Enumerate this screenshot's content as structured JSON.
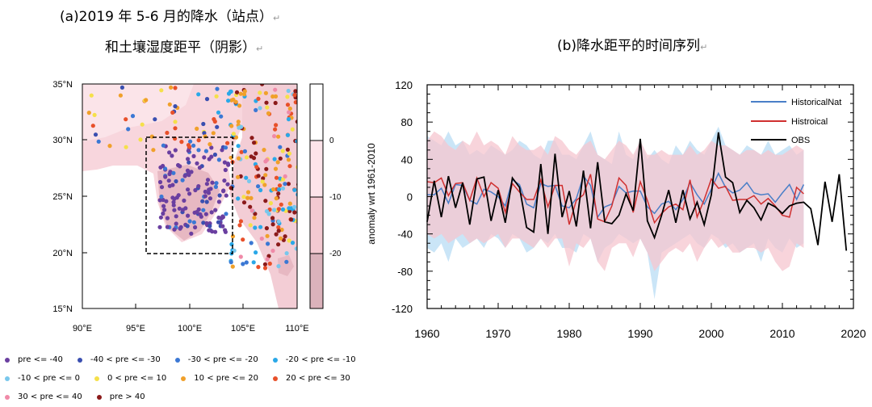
{
  "panel_a": {
    "title_line1": "(a)2019 年 5-6 月的降水（站点）",
    "title_line2": "和土壤湿度距平（阴影）",
    "paragraph_mark": "↵"
  },
  "panel_b": {
    "title": "(b)降水距平的时间序列",
    "paragraph_mark": "↵"
  },
  "legend_a": [
    {
      "label": "pre <= -40",
      "color": "#6a3fa0"
    },
    {
      "label": "-40 < pre <= -30",
      "color": "#3a4fb0"
    },
    {
      "label": "-30 < pre <= -20",
      "color": "#3b78d4"
    },
    {
      "label": "-20 < pre <= -10",
      "color": "#2aa8e8"
    },
    {
      "label": "-10 < pre <= 0",
      "color": "#79c7ec"
    },
    {
      "label": "0 < pre <= 10",
      "color": "#f5e04a"
    },
    {
      "label": "10 < pre <= 20",
      "color": "#f0a02a"
    },
    {
      "label": "20 < pre <= 30",
      "color": "#e8502a"
    },
    {
      "label": "30 < pre <= 40",
      "color": "#f08aa8"
    },
    {
      "label": "pre > 40",
      "color": "#8b1a1a"
    }
  ],
  "chart_data": [
    {
      "type": "map",
      "title": "(a)2019 年 5-6 月的降水（站点） 和土壤湿度距平（阴影）",
      "x_ticks": [
        "90°E",
        "95°E",
        "100°E",
        "105°E",
        "110°E"
      ],
      "y_ticks": [
        "15°N",
        "20°N",
        "25°N",
        "30°N",
        "35°N"
      ],
      "lon_range": [
        90,
        110
      ],
      "lat_range": [
        15,
        35
      ],
      "box": {
        "lon": [
          96,
          104
        ],
        "lat": [
          20,
          30.2
        ]
      },
      "colorbar_ticks": [
        "0",
        "-10",
        "-20"
      ],
      "shading_colors": {
        "zero": "#fde4ea",
        "m10": "#f3c9d1",
        "m20": "#dbb2bb"
      }
    },
    {
      "type": "line",
      "title": "(b)降水距平的时间序列",
      "ylabel": "anomaly wrt 1961-2010",
      "xlim": [
        1960,
        2020
      ],
      "ylim": [
        -120,
        120
      ],
      "x_ticks": [
        1960,
        1970,
        1980,
        1990,
        2000,
        2010,
        2020
      ],
      "y_ticks": [
        120,
        80,
        40,
        0,
        -40,
        -80,
        -120
      ],
      "legend": [
        "HistoricalNat",
        "Histroical",
        "OBS"
      ],
      "series": [
        {
          "name": "HistoricalNat",
          "color": "#4a7fc8",
          "band_color": "#b8dcf4",
          "x": [
            1960,
            1961,
            1962,
            1963,
            1964,
            1965,
            1966,
            1967,
            1968,
            1969,
            1970,
            1971,
            1972,
            1973,
            1974,
            1975,
            1976,
            1977,
            1978,
            1979,
            1980,
            1981,
            1982,
            1983,
            1984,
            1985,
            1986,
            1987,
            1988,
            1989,
            1990,
            1991,
            1992,
            1993,
            1994,
            1995,
            1996,
            1997,
            1998,
            1999,
            2000,
            2001,
            2002,
            2003,
            2004,
            2005,
            2006,
            2007,
            2008,
            2009,
            2010,
            2011,
            2012,
            2013
          ],
          "values": [
            2,
            2,
            9,
            -7,
            13,
            12,
            -4,
            -8,
            8,
            5,
            0,
            -10,
            18,
            13,
            -8,
            -12,
            14,
            11,
            12,
            -10,
            -12,
            -2,
            22,
            12,
            -22,
            -11,
            -8,
            11,
            4,
            6,
            6,
            -11,
            -18,
            -8,
            -5,
            -14,
            -3,
            15,
            2,
            -8,
            8,
            25,
            10,
            4,
            7,
            15,
            4,
            2,
            3,
            -6,
            4,
            13,
            -3,
            13
          ],
          "band_upper": [
            65,
            60,
            55,
            70,
            55,
            60,
            45,
            50,
            45,
            55,
            50,
            45,
            50,
            60,
            55,
            45,
            40,
            60,
            60,
            45,
            45,
            40,
            55,
            70,
            45,
            40,
            35,
            70,
            45,
            40,
            60,
            40,
            50,
            40,
            35,
            55,
            45,
            60,
            50,
            45,
            60,
            75,
            55,
            50,
            45,
            55,
            50,
            45,
            60,
            45,
            50,
            55,
            45,
            50
          ],
          "band_lower": [
            -55,
            -60,
            -50,
            -70,
            -45,
            -55,
            -50,
            -45,
            -55,
            -40,
            -45,
            -55,
            -40,
            -45,
            -60,
            -55,
            -45,
            -50,
            -40,
            -55,
            -55,
            -60,
            -40,
            -45,
            -70,
            -55,
            -50,
            -40,
            -45,
            -50,
            -45,
            -60,
            -110,
            -60,
            -55,
            -50,
            -45,
            -40,
            -50,
            -55,
            -40,
            -45,
            -55,
            -50,
            -60,
            -55,
            -50,
            -70,
            -45,
            -55,
            -60,
            -45,
            -55,
            -50
          ]
        },
        {
          "name": "Histroical",
          "color": "#d03030",
          "band_color": "#f6c6cf",
          "x": [
            1960,
            1961,
            1962,
            1963,
            1964,
            1965,
            1966,
            1967,
            1968,
            1969,
            1970,
            1971,
            1972,
            1973,
            1974,
            1975,
            1976,
            1977,
            1978,
            1979,
            1980,
            1981,
            1982,
            1983,
            1984,
            1985,
            1986,
            1987,
            1988,
            1989,
            1990,
            1991,
            1992,
            1993,
            1994,
            1995,
            1996,
            1997,
            1998,
            1999,
            2000,
            2001,
            2002,
            2003,
            2004,
            2005,
            2006,
            2007,
            2008,
            2009,
            2010,
            2011,
            2012,
            2013
          ],
          "values": [
            16,
            15,
            20,
            1,
            14,
            15,
            -4,
            20,
            0,
            15,
            9,
            -17,
            14,
            5,
            -3,
            -3,
            18,
            -11,
            12,
            12,
            -30,
            -4,
            2,
            24,
            -24,
            -27,
            -10,
            20,
            12,
            -17,
            16,
            -4,
            -28,
            -18,
            -11,
            -8,
            -14,
            18,
            -22,
            -3,
            19,
            9,
            11,
            -4,
            -3,
            -3,
            1,
            -8,
            -2,
            -10,
            -20,
            -22,
            10,
            3
          ],
          "band_upper": [
            60,
            70,
            65,
            55,
            50,
            60,
            55,
            70,
            55,
            60,
            55,
            45,
            65,
            55,
            50,
            50,
            55,
            45,
            65,
            60,
            50,
            45,
            55,
            60,
            45,
            40,
            50,
            60,
            55,
            45,
            60,
            45,
            45,
            50,
            45,
            45,
            45,
            55,
            45,
            50,
            60,
            55,
            55,
            50,
            45,
            50,
            50,
            45,
            50,
            45,
            45,
            50,
            55,
            50
          ],
          "band_lower": [
            -40,
            -45,
            -40,
            -50,
            -45,
            -40,
            -50,
            -45,
            -50,
            -45,
            -40,
            -55,
            -45,
            -45,
            -50,
            -55,
            -45,
            -55,
            -45,
            -45,
            -75,
            -50,
            -55,
            -45,
            -70,
            -80,
            -55,
            -50,
            -50,
            -65,
            -45,
            -60,
            -80,
            -70,
            -60,
            -55,
            -60,
            -50,
            -70,
            -55,
            -45,
            -55,
            -50,
            -60,
            -60,
            -55,
            -55,
            -60,
            -55,
            -70,
            -80,
            -75,
            -50,
            -55
          ]
        },
        {
          "name": "OBS",
          "color": "#000000",
          "x": [
            1960,
            1961,
            1962,
            1963,
            1964,
            1965,
            1966,
            1967,
            1968,
            1969,
            1970,
            1971,
            1972,
            1973,
            1974,
            1975,
            1976,
            1977,
            1978,
            1979,
            1980,
            1981,
            1982,
            1983,
            1984,
            1985,
            1986,
            1987,
            1988,
            1989,
            1990,
            1991,
            1992,
            1993,
            1994,
            1995,
            1996,
            1997,
            1998,
            1999,
            2000,
            2001,
            2002,
            2003,
            2004,
            2005,
            2006,
            2007,
            2008,
            2009,
            2010,
            2011,
            2012,
            2013,
            2014,
            2015,
            2016,
            2017,
            2018,
            2019
          ],
          "values": [
            -27,
            17,
            -22,
            22,
            -12,
            15,
            -30,
            19,
            21,
            -26,
            7,
            -28,
            20,
            10,
            -33,
            -38,
            35,
            -40,
            46,
            -22,
            6,
            -32,
            28,
            -34,
            37,
            -27,
            -29,
            -20,
            3,
            -15,
            62,
            -26,
            -44,
            -20,
            7,
            -28,
            7,
            -24,
            -6,
            -30,
            2,
            69,
            21,
            15,
            -17,
            -4,
            -12,
            -25,
            -7,
            -11,
            -18,
            -10,
            -7,
            -6,
            -13,
            -52,
            16,
            -27,
            24,
            -58
          ]
        }
      ]
    }
  ]
}
